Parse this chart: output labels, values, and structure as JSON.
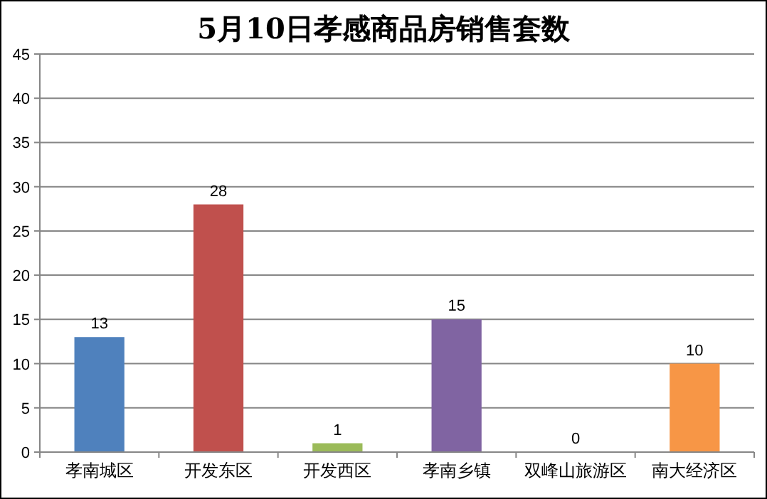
{
  "chart_data": {
    "type": "bar",
    "title": "5月10日孝感商品房销售套数",
    "categories": [
      "孝南城区",
      "开发东区",
      "开发西区",
      "孝南乡镇",
      "双峰山旅游区",
      "南大经济区"
    ],
    "values": [
      13,
      28,
      1,
      15,
      0,
      10
    ],
    "colors": [
      "#4f81bd",
      "#c0504d",
      "#9bbb59",
      "#8064a2",
      "#4bacc6",
      "#f79646"
    ],
    "ylim": [
      0,
      45
    ],
    "yticks": [
      0,
      5,
      10,
      15,
      20,
      25,
      30,
      35,
      40,
      45
    ],
    "grid": "y",
    "data_labels": true
  }
}
